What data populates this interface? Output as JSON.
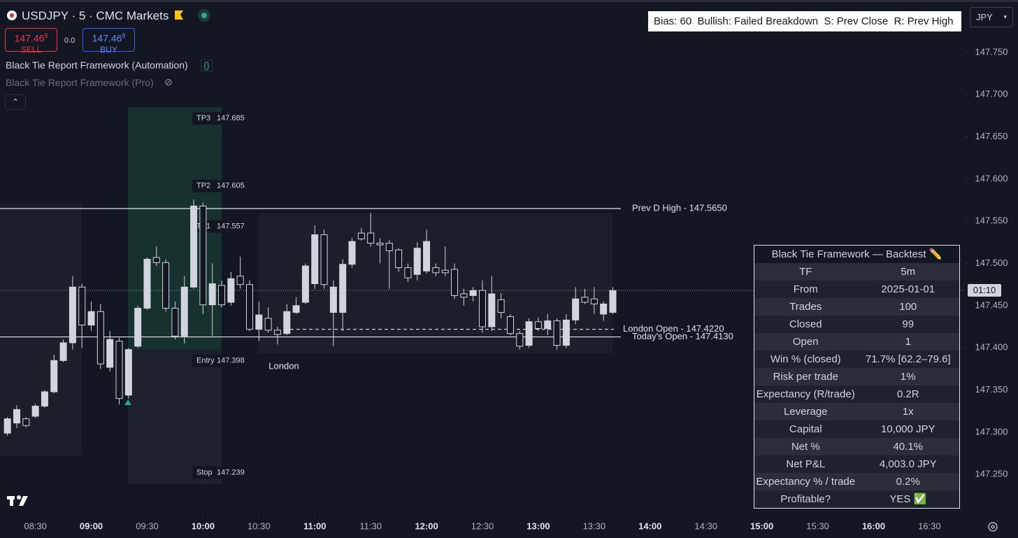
{
  "header": {
    "title": "USDJPY · 5 · CMC Markets",
    "sell": {
      "price": "147.46",
      "pip": "8",
      "label": "SELL"
    },
    "spread": "0.0",
    "buy": {
      "price": "147.46",
      "pip": "8",
      "label": "BUY"
    },
    "indicators": [
      "Black Tie Report Framework (Automation)",
      "Black Tie Report Framework (Pro)"
    ]
  },
  "currency": "JPY",
  "bias_box": "Bias: 60  Bullish: Failed Breakdown  S: Prev Close  R: Prev High",
  "chart_data": {
    "type": "candlestick",
    "up_color": "#d1d4dc",
    "down_color": "#131722",
    "x": [
      "08:15",
      "08:20",
      "08:25",
      "08:30",
      "08:35",
      "08:40",
      "08:45",
      "08:50",
      "08:55",
      "09:00",
      "09:05",
      "09:10",
      "09:15",
      "09:20",
      "09:25",
      "09:30",
      "09:35",
      "09:40",
      "09:45",
      "09:50",
      "09:55",
      "10:00",
      "10:05",
      "10:10",
      "10:15",
      "10:20",
      "10:25",
      "10:30",
      "10:35",
      "10:40",
      "10:45",
      "10:50",
      "10:55",
      "11:00",
      "11:05",
      "11:10",
      "11:15",
      "11:20",
      "11:25",
      "11:30",
      "11:35",
      "11:40",
      "11:45",
      "11:50",
      "11:55",
      "12:00",
      "12:05",
      "12:10",
      "12:15",
      "12:20",
      "12:25",
      "12:30",
      "12:35",
      "12:40",
      "12:45",
      "12:50",
      "12:55",
      "13:00",
      "13:05",
      "13:10",
      "13:15",
      "13:20",
      "13:25",
      "13:30",
      "13:35",
      "13:40"
    ],
    "open": [
      147.299,
      147.311,
      147.316,
      147.319,
      147.331,
      147.348,
      147.385,
      147.406,
      147.472,
      147.427,
      147.443,
      147.377,
      147.408,
      147.344,
      147.402,
      147.447,
      147.507,
      147.501,
      147.447,
      147.414,
      147.472,
      147.568,
      147.451,
      147.474,
      147.454,
      147.485,
      147.475,
      147.422,
      147.435,
      147.421,
      147.417,
      147.442,
      147.454,
      147.476,
      147.534,
      147.442,
      147.442,
      147.499,
      147.536,
      147.536,
      147.524,
      147.524,
      147.516,
      147.495,
      147.487,
      147.491,
      147.495,
      147.492,
      147.493,
      147.464,
      147.462,
      147.468,
      147.425,
      147.457,
      147.437,
      147.417,
      147.403,
      147.431,
      147.423,
      147.432,
      147.403,
      147.433,
      147.46,
      147.458,
      147.44,
      147.442
    ],
    "high": [
      147.318,
      147.332,
      147.318,
      147.334,
      147.35,
      147.392,
      147.41,
      147.485,
      147.476,
      147.455,
      147.452,
      147.42,
      147.412,
      147.4,
      147.45,
      147.507,
      147.52,
      147.505,
      147.455,
      147.485,
      147.576,
      147.572,
      147.5,
      147.48,
      147.49,
      147.508,
      147.48,
      147.455,
      147.448,
      147.425,
      147.452,
      147.46,
      147.5,
      147.545,
      147.54,
      147.48,
      147.505,
      147.53,
      147.542,
      147.56,
      147.53,
      147.528,
      147.518,
      147.5,
      147.525,
      147.54,
      147.5,
      147.52,
      147.5,
      147.47,
      147.472,
      147.48,
      147.485,
      147.465,
      147.44,
      147.42,
      147.435,
      147.436,
      147.44,
      147.435,
      147.44,
      147.472,
      147.47,
      147.472,
      147.455,
      147.472
    ],
    "low": [
      147.296,
      147.305,
      147.306,
      147.317,
      147.329,
      147.346,
      147.383,
      147.398,
      147.4,
      147.42,
      147.375,
      147.372,
      147.333,
      147.34,
      147.4,
      147.445,
      147.497,
      147.443,
      147.41,
      147.405,
      147.47,
      147.44,
      147.414,
      147.448,
      147.45,
      147.47,
      147.42,
      147.408,
      147.418,
      147.404,
      147.415,
      147.44,
      147.452,
      147.47,
      147.47,
      147.402,
      147.42,
      147.495,
      147.527,
      147.52,
      147.5,
      147.47,
      147.49,
      147.478,
      147.48,
      147.488,
      147.485,
      147.485,
      147.458,
      147.45,
      147.455,
      147.418,
      147.42,
      147.435,
      147.415,
      147.398,
      147.4,
      147.42,
      147.415,
      147.398,
      147.4,
      147.428,
      147.452,
      147.44,
      147.432,
      147.44
    ],
    "close": [
      147.316,
      147.327,
      147.308,
      147.331,
      147.348,
      147.385,
      147.406,
      147.472,
      147.427,
      147.443,
      147.381,
      147.41,
      147.34,
      147.398,
      147.447,
      147.505,
      147.501,
      147.447,
      147.414,
      147.472,
      147.568,
      147.451,
      147.476,
      147.451,
      147.482,
      147.475,
      147.422,
      147.439,
      147.421,
      147.416,
      147.443,
      147.45,
      147.497,
      147.534,
      147.475,
      147.472,
      147.499,
      147.526,
      147.529,
      147.524,
      147.522,
      147.515,
      147.495,
      147.483,
      147.518,
      147.526,
      147.489,
      147.489,
      147.462,
      147.46,
      147.468,
      147.425,
      147.464,
      147.442,
      147.417,
      147.402,
      147.431,
      147.423,
      147.432,
      147.403,
      147.433,
      147.458,
      147.454,
      147.452,
      147.452,
      147.468
    ],
    "xlim": [
      "08:11",
      "16:49"
    ],
    "xticks": [
      "08:30",
      "09:00",
      "09:30",
      "10:00",
      "10:30",
      "11:00",
      "11:30",
      "12:00",
      "12:30",
      "13:00",
      "13:30",
      "14:00",
      "14:30",
      "15:00",
      "15:30",
      "16:00",
      "16:30"
    ],
    "ylim": [
      147.203,
      147.812
    ],
    "yticks": [
      {
        "value": 147.25,
        "label": "147.250"
      },
      {
        "value": 147.3,
        "label": "147.300"
      },
      {
        "value": 147.35,
        "label": "147.350"
      },
      {
        "value": 147.4,
        "label": "147.400"
      },
      {
        "value": 147.45,
        "label": "147.450"
      },
      {
        "value": 147.5,
        "label": "147.500"
      },
      {
        "value": 147.55,
        "label": "147.550"
      },
      {
        "value": 147.6,
        "label": "147.600"
      },
      {
        "value": 147.65,
        "label": "147.650"
      },
      {
        "value": 147.7,
        "label": "147.700"
      },
      {
        "value": 147.75,
        "label": "147.750"
      }
    ],
    "last_price": 147.468,
    "countdown": "01:10",
    "session_label": "London",
    "levels": [
      {
        "label": "Prev D High - 147.5650",
        "value": 147.565,
        "style": "solid"
      },
      {
        "label": "London Open - 147.4220",
        "value": 147.422,
        "style": "dashed"
      },
      {
        "label": "Today's Open - 147.4130",
        "value": 147.413,
        "style": "solid"
      }
    ],
    "trade": [
      {
        "label": "TP3",
        "value": 147.685
      },
      {
        "label": "TP2",
        "value": 147.605
      },
      {
        "label": "TP1",
        "value": 147.557
      },
      {
        "label": "Entry",
        "value": 147.398
      },
      {
        "label": "Stop",
        "value": 147.239
      }
    ]
  },
  "backtest": {
    "title": "Black Tie Framework — Backtest ✏️",
    "rows": [
      [
        "TF",
        "5m"
      ],
      [
        "From",
        "2025-01-01"
      ],
      [
        "Trades",
        "100"
      ],
      [
        "Closed",
        "99"
      ],
      [
        "Open",
        "1"
      ],
      [
        "Win % (closed)",
        "71.7% [62.2–79.6]"
      ],
      [
        "Risk per trade",
        "1%"
      ],
      [
        "Expectancy (R/trade)",
        "0.2R"
      ],
      [
        "Leverage",
        "1x"
      ],
      [
        "Capital",
        "10,000 JPY"
      ],
      [
        "Net %",
        "40.1%"
      ],
      [
        "Net P&L",
        "4,003.0 JPY"
      ],
      [
        "Expectancy % / trade",
        "0.2%"
      ],
      [
        "Profitable?",
        "YES ✅"
      ]
    ]
  }
}
